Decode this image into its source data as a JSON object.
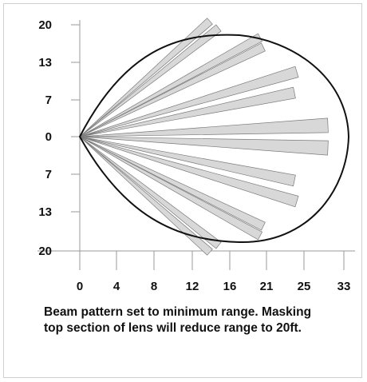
{
  "figure": {
    "y_tick_labels": [
      "20",
      "13",
      "7",
      "0",
      "7",
      "13",
      "20"
    ],
    "x_tick_labels": [
      "0",
      "4",
      "8",
      "12",
      "16",
      "21",
      "25",
      "33"
    ],
    "caption_lines": [
      "Beam pattern set to minimum range.  Masking",
      "top section of lens will reduce range to 20ft."
    ]
  },
  "beams": [
    {
      "end": [
        16.3,
        20.5
      ],
      "half_width": 0.5
    },
    {
      "end": [
        17.4,
        19.3
      ],
      "half_width": 0.5
    },
    {
      "end": [
        22.6,
        17.6
      ],
      "half_width": 0.55
    },
    {
      "end": [
        23.0,
        15.9
      ],
      "half_width": 0.55
    },
    {
      "end": [
        27.2,
        11.5
      ],
      "half_width": 0.7
    },
    {
      "end": [
        26.9,
        7.8
      ],
      "half_width": 0.7
    },
    {
      "end": [
        31.1,
        2.0
      ],
      "half_width": 0.9
    },
    {
      "end": [
        31.1,
        -2.0
      ],
      "half_width": 0.9
    },
    {
      "end": [
        26.9,
        -7.8
      ],
      "half_width": 0.7
    },
    {
      "end": [
        27.2,
        -11.5
      ],
      "half_width": 0.7
    },
    {
      "end": [
        23.0,
        -15.9
      ],
      "half_width": 0.55
    },
    {
      "end": [
        22.6,
        -17.6
      ],
      "half_width": 0.55
    },
    {
      "end": [
        17.4,
        -19.3
      ],
      "half_width": 0.5
    },
    {
      "end": [
        16.3,
        -20.5
      ],
      "half_width": 0.5
    }
  ],
  "style": {
    "beam_fill": "#d8d8d8",
    "beam_stroke": "#7a7a7a",
    "envelope_stroke": "#111111",
    "axis_color": "#9a9a9a"
  }
}
